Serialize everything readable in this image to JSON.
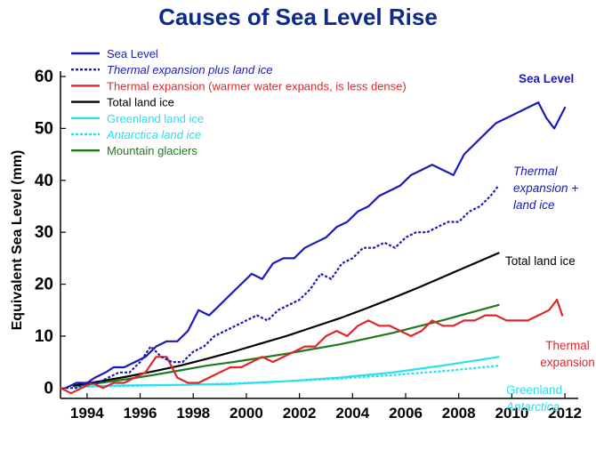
{
  "chart_data": {
    "type": "line",
    "title": "Causes of Sea Level Rise",
    "ylabel": "Equivalent Sea Level (mm)",
    "xlabel": "",
    "xlim": [
      1993.0,
      2012.5
    ],
    "ylim": [
      -2,
      60
    ],
    "yticks": [
      0,
      10,
      20,
      30,
      40,
      50,
      60
    ],
    "xticks": [
      1994,
      1996,
      1998,
      2000,
      2002,
      2004,
      2006,
      2008,
      2010,
      2012
    ],
    "grid": false,
    "legend_position": "top-left",
    "colors": {
      "title": "#0b2a8a",
      "sea_level": "#1a1ab8",
      "thermal": "#e0262a",
      "land_ice": "#000000",
      "greenland": "#27e0f0",
      "glaciers": "#1e7a1e"
    },
    "series": [
      {
        "name": "Sea Level",
        "legend_label": "Sea Level",
        "color": "#1a1ab8",
        "dash": "solid",
        "italic": false,
        "x": [
          1993.2,
          1993.6,
          1994.0,
          1994.3,
          1994.7,
          1995.0,
          1995.4,
          1995.8,
          1996.2,
          1996.6,
          1997.0,
          1997.4,
          1997.8,
          1998.2,
          1998.6,
          1999.0,
          1999.4,
          1999.8,
          2000.2,
          2000.6,
          2001.0,
          2001.4,
          2001.8,
          2002.2,
          2002.6,
          2003.0,
          2003.4,
          2003.8,
          2004.2,
          2004.6,
          2005.0,
          2005.4,
          2005.8,
          2006.2,
          2006.6,
          2007.0,
          2007.4,
          2007.8,
          2008.2,
          2008.6,
          2009.0,
          2009.4,
          2009.8,
          2010.2,
          2010.6,
          2011.0,
          2011.3,
          2011.6,
          2012.0
        ],
        "values": [
          0,
          1,
          1,
          2,
          3,
          4,
          4,
          5,
          6,
          8,
          9,
          9,
          11,
          15,
          14,
          16,
          18,
          20,
          22,
          21,
          24,
          25,
          25,
          27,
          28,
          29,
          31,
          32,
          34,
          35,
          37,
          38,
          39,
          41,
          42,
          43,
          42,
          41,
          45,
          47,
          49,
          51,
          52,
          53,
          54,
          55,
          52,
          50,
          54
        ]
      },
      {
        "name": "Thermal expansion plus land ice",
        "legend_label": "Thermal expansion plus land ice",
        "color": "#1a1ab8",
        "dash": "dotted",
        "italic": true,
        "x": [
          1993.2,
          1993.6,
          1994.0,
          1994.4,
          1994.8,
          1995.2,
          1995.6,
          1996.0,
          1996.4,
          1996.8,
          1997.2,
          1997.6,
          1998.0,
          1998.4,
          1998.8,
          1999.2,
          1999.6,
          2000.0,
          2000.4,
          2000.8,
          2001.2,
          2001.6,
          2002.0,
          2002.4,
          2002.8,
          2003.2,
          2003.6,
          2004.0,
          2004.4,
          2004.8,
          2005.2,
          2005.6,
          2006.0,
          2006.4,
          2006.8,
          2007.2,
          2007.6,
          2008.0,
          2008.4,
          2008.8,
          2009.2,
          2009.5
        ],
        "values": [
          0,
          0,
          1,
          1,
          2,
          3,
          3,
          5,
          8,
          6,
          5,
          5,
          7,
          8,
          10,
          11,
          12,
          13,
          14,
          13,
          15,
          16,
          17,
          19,
          22,
          21,
          24,
          25,
          27,
          27,
          28,
          27,
          29,
          30,
          30,
          31,
          32,
          32,
          34,
          35,
          37,
          39
        ]
      },
      {
        "name": "Thermal expansion (warmer water expands, is less dense)",
        "legend_label": "Thermal expansion (warmer water expands, is less dense)",
        "color": "#e0262a",
        "dash": "solid",
        "italic": false,
        "x": [
          1993.0,
          1993.4,
          1993.8,
          1994.2,
          1994.6,
          1995.0,
          1995.4,
          1995.8,
          1996.2,
          1996.6,
          1997.0,
          1997.4,
          1997.8,
          1998.2,
          1998.6,
          1999.0,
          1999.4,
          1999.8,
          2000.2,
          2000.6,
          2001.0,
          2001.4,
          2001.8,
          2002.2,
          2002.6,
          2003.0,
          2003.4,
          2003.8,
          2004.2,
          2004.6,
          2005.0,
          2005.4,
          2005.8,
          2006.2,
          2006.6,
          2007.0,
          2007.4,
          2007.8,
          2008.2,
          2008.6,
          2009.0,
          2009.4,
          2009.8,
          2010.2,
          2010.6,
          2011.0,
          2011.4,
          2011.7,
          2011.9
        ],
        "values": [
          0,
          -1,
          0,
          1,
          0,
          1,
          1,
          2,
          3,
          6,
          6,
          2,
          1,
          1,
          2,
          3,
          4,
          4,
          5,
          6,
          5,
          6,
          7,
          8,
          8,
          10,
          11,
          10,
          12,
          13,
          12,
          12,
          11,
          10,
          11,
          13,
          12,
          12,
          13,
          13,
          14,
          14,
          13,
          13,
          13,
          14,
          15,
          17,
          14
        ]
      },
      {
        "name": "Total land ice",
        "legend_label": "Total land ice",
        "color": "#000000",
        "dash": "solid",
        "italic": false,
        "x": [
          1993.5,
          1994.5,
          1995.5,
          1996.5,
          1997.5,
          1998.5,
          1999.5,
          2000.5,
          2001.5,
          2002.5,
          2003.5,
          2004.5,
          2005.5,
          2006.5,
          2007.5,
          2008.5,
          2009.5
        ],
        "values": [
          0.5,
          1.3,
          2.2,
          3.2,
          4.3,
          5.6,
          7.0,
          8.5,
          10.0,
          11.7,
          13.4,
          15.3,
          17.3,
          19.4,
          21.6,
          23.8,
          26.0
        ]
      },
      {
        "name": "Greenland land ice",
        "legend_label": "Greenland land ice",
        "color": "#27e0f0",
        "dash": "solid",
        "italic": false,
        "x": [
          1993.5,
          1995.5,
          1997.5,
          1999.5,
          2001.5,
          2003.5,
          2005.5,
          2007.5,
          2009.5
        ],
        "values": [
          0.3,
          0.5,
          0.6,
          0.8,
          1.3,
          2.0,
          3.0,
          4.4,
          6.0
        ]
      },
      {
        "name": "Antarctica land ice",
        "legend_label": "Antarctica land ice",
        "color": "#27e0f0",
        "dash": "dotted",
        "italic": true,
        "x": [
          1993.5,
          1995.5,
          1997.5,
          1999.5,
          2001.5,
          2003.5,
          2005.5,
          2007.5,
          2009.5
        ],
        "values": [
          0.2,
          0.4,
          0.6,
          0.9,
          1.3,
          1.8,
          2.5,
          3.3,
          4.3
        ]
      },
      {
        "name": "Mountain glaciers",
        "legend_label": "Mountain glaciers",
        "color": "#1e7a1e",
        "dash": "solid",
        "italic": false,
        "x": [
          1993.5,
          1994.5,
          1995.5,
          1996.5,
          1997.5,
          1998.5,
          1999.5,
          2000.5,
          2001.5,
          2002.5,
          2003.5,
          2004.5,
          2005.5,
          2006.5,
          2007.5,
          2008.5,
          2009.5
        ],
        "values": [
          0.4,
          1.0,
          1.7,
          2.5,
          3.4,
          4.3,
          5.0,
          5.8,
          6.6,
          7.5,
          8.4,
          9.5,
          10.6,
          11.9,
          13.2,
          14.6,
          16.0
        ]
      }
    ],
    "annotations": [
      {
        "series": "Sea Level",
        "lines": [
          "Sea Level"
        ],
        "color": "#1a1ab8",
        "italic": false,
        "bold": true
      },
      {
        "series": "Thermal expansion plus land ice",
        "lines": [
          "Thermal",
          "expansion +",
          "land ice"
        ],
        "color": "#1a1ab8",
        "italic": true,
        "bold": false
      },
      {
        "series": "Total land ice",
        "lines": [
          "Total land ice"
        ],
        "color": "#000000",
        "italic": false,
        "bold": false
      },
      {
        "series": "Thermal expansion",
        "lines": [
          "Thermal",
          "expansion"
        ],
        "color": "#e0262a",
        "italic": false,
        "bold": false
      },
      {
        "series": "Greenland",
        "lines": [
          "Greenland"
        ],
        "color": "#27e0f0",
        "italic": false,
        "bold": false
      },
      {
        "series": "Antarctica",
        "lines": [
          "Antarctica"
        ],
        "color": "#27e0f0",
        "italic": true,
        "bold": false
      }
    ]
  }
}
